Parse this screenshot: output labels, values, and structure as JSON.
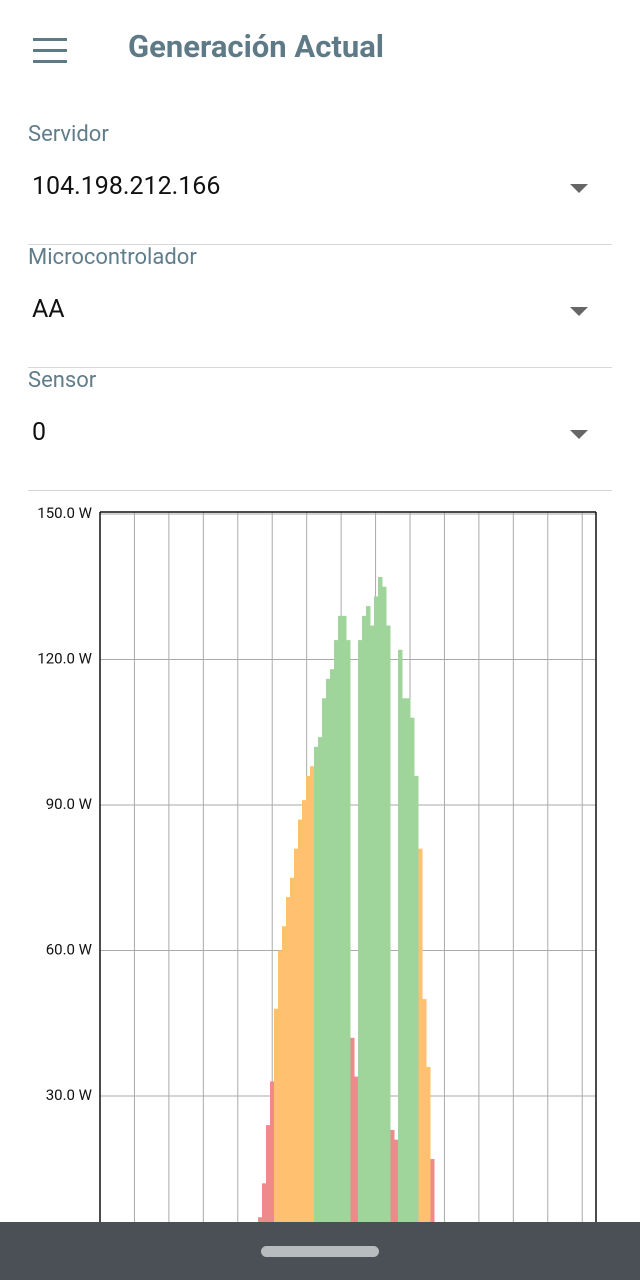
{
  "header": {
    "title": "Generación Actual"
  },
  "fields": [
    {
      "label": "Servidor",
      "value": "104.198.212.166"
    },
    {
      "label": "Microcontrolador",
      "value": "AA"
    },
    {
      "label": "Sensor",
      "value": "0"
    }
  ],
  "chart_data": {
    "type": "bar",
    "categories": [
      null,
      null,
      null,
      null,
      null,
      null,
      null,
      null,
      null,
      null,
      null,
      null,
      null,
      null,
      null,
      null,
      null,
      null,
      null,
      null,
      null,
      null,
      null,
      null,
      null,
      null,
      null,
      null,
      null,
      null,
      null,
      null,
      null,
      null,
      null,
      null,
      null,
      null,
      null,
      null,
      null,
      null,
      null,
      null
    ],
    "series": [
      {
        "color": "#ef8a8a",
        "values": [
          5,
          12,
          24,
          33,
          null,
          null,
          null,
          null,
          null,
          null,
          null,
          null,
          null,
          null,
          null,
          null,
          null,
          null,
          null,
          null,
          null,
          null,
          null,
          42,
          34,
          null,
          null,
          null,
          null,
          null,
          null,
          null,
          null,
          23,
          21,
          null,
          null,
          null,
          null,
          null,
          null,
          null,
          null,
          17
        ]
      },
      {
        "color": "#ffc070",
        "values": [
          null,
          null,
          null,
          null,
          48,
          60,
          65,
          71,
          75,
          81,
          87,
          91,
          96,
          98,
          null,
          null,
          null,
          null,
          null,
          null,
          null,
          null,
          null,
          null,
          null,
          null,
          null,
          null,
          null,
          null,
          null,
          null,
          null,
          null,
          null,
          null,
          null,
          null,
          null,
          null,
          81,
          50,
          36,
          null
        ]
      },
      {
        "color": "#9fd49a",
        "values": [
          null,
          null,
          null,
          null,
          null,
          null,
          null,
          null,
          null,
          null,
          null,
          null,
          null,
          null,
          102,
          104,
          112,
          116,
          118,
          124,
          129,
          129,
          124,
          null,
          null,
          124,
          129,
          131,
          127,
          133,
          137,
          135,
          127,
          null,
          null,
          122,
          112,
          112,
          108,
          96,
          null,
          null,
          null,
          null
        ]
      }
    ],
    "ylim": [
      0,
      150
    ],
    "yticks": [
      {
        "value": 30,
        "label": "30.0 W"
      },
      {
        "value": 60,
        "label": "60.0 W"
      },
      {
        "value": 90,
        "label": "90.0 W"
      },
      {
        "value": 120,
        "label": "120.0 W"
      },
      {
        "value": 150,
        "label": "150.0 W"
      }
    ],
    "grid": true
  }
}
